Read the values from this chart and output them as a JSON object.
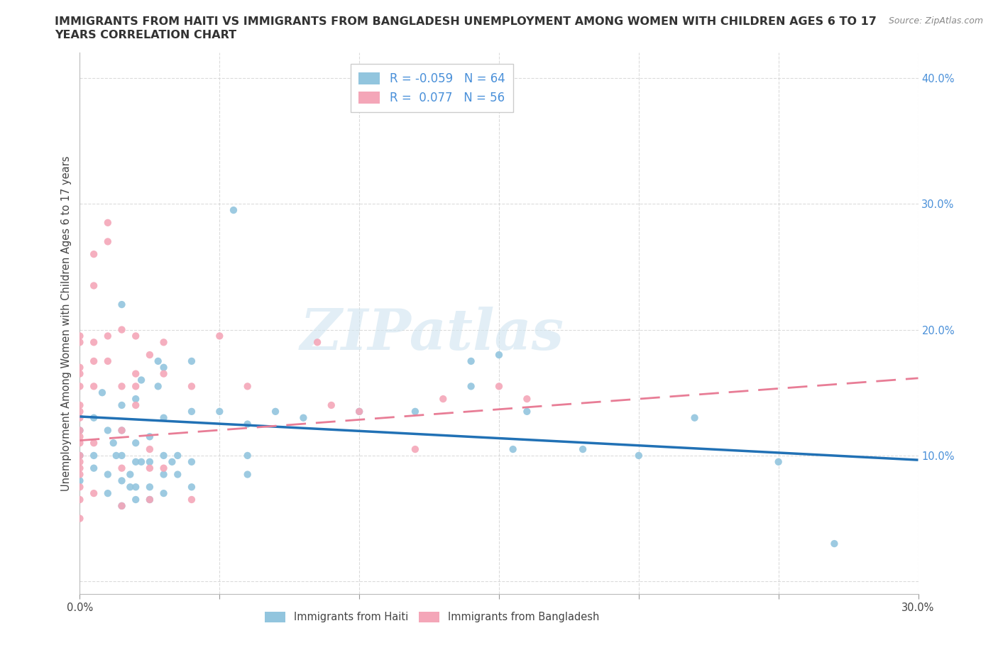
{
  "title_line1": "IMMIGRANTS FROM HAITI VS IMMIGRANTS FROM BANGLADESH UNEMPLOYMENT AMONG WOMEN WITH CHILDREN AGES 6 TO 17",
  "title_line2": "YEARS CORRELATION CHART",
  "source": "Source: ZipAtlas.com",
  "ylabel": "Unemployment Among Women with Children Ages 6 to 17 years",
  "xlim": [
    0.0,
    0.3
  ],
  "ylim": [
    -0.01,
    0.42
  ],
  "xticks": [
    0.0,
    0.05,
    0.1,
    0.15,
    0.2,
    0.25,
    0.3
  ],
  "yticks": [
    0.0,
    0.1,
    0.2,
    0.3,
    0.4
  ],
  "haiti_color": "#92c5de",
  "bangladesh_color": "#f4a6b8",
  "haiti_line_color": "#2171b5",
  "bangladesh_line_color": "#e87d96",
  "R_haiti": -0.059,
  "N_haiti": 64,
  "R_bangladesh": 0.077,
  "N_bangladesh": 56,
  "haiti_intercept": 0.131,
  "haiti_slope": -0.115,
  "bangladesh_intercept": 0.112,
  "bangladesh_slope": 0.165,
  "haiti_scatter": [
    [
      0.0,
      0.12
    ],
    [
      0.0,
      0.1
    ],
    [
      0.0,
      0.08
    ],
    [
      0.005,
      0.13
    ],
    [
      0.005,
      0.1
    ],
    [
      0.005,
      0.09
    ],
    [
      0.008,
      0.15
    ],
    [
      0.01,
      0.12
    ],
    [
      0.01,
      0.085
    ],
    [
      0.01,
      0.07
    ],
    [
      0.012,
      0.11
    ],
    [
      0.013,
      0.1
    ],
    [
      0.015,
      0.22
    ],
    [
      0.015,
      0.14
    ],
    [
      0.015,
      0.12
    ],
    [
      0.015,
      0.1
    ],
    [
      0.015,
      0.08
    ],
    [
      0.015,
      0.06
    ],
    [
      0.018,
      0.085
    ],
    [
      0.018,
      0.075
    ],
    [
      0.02,
      0.145
    ],
    [
      0.02,
      0.11
    ],
    [
      0.02,
      0.095
    ],
    [
      0.02,
      0.075
    ],
    [
      0.02,
      0.065
    ],
    [
      0.022,
      0.16
    ],
    [
      0.022,
      0.095
    ],
    [
      0.025,
      0.115
    ],
    [
      0.025,
      0.095
    ],
    [
      0.025,
      0.075
    ],
    [
      0.025,
      0.065
    ],
    [
      0.028,
      0.175
    ],
    [
      0.028,
      0.155
    ],
    [
      0.03,
      0.17
    ],
    [
      0.03,
      0.13
    ],
    [
      0.03,
      0.1
    ],
    [
      0.03,
      0.085
    ],
    [
      0.03,
      0.07
    ],
    [
      0.033,
      0.095
    ],
    [
      0.035,
      0.1
    ],
    [
      0.035,
      0.085
    ],
    [
      0.04,
      0.175
    ],
    [
      0.04,
      0.135
    ],
    [
      0.04,
      0.095
    ],
    [
      0.04,
      0.075
    ],
    [
      0.05,
      0.135
    ],
    [
      0.055,
      0.295
    ],
    [
      0.06,
      0.125
    ],
    [
      0.06,
      0.1
    ],
    [
      0.06,
      0.085
    ],
    [
      0.07,
      0.135
    ],
    [
      0.08,
      0.13
    ],
    [
      0.1,
      0.135
    ],
    [
      0.12,
      0.135
    ],
    [
      0.14,
      0.175
    ],
    [
      0.14,
      0.155
    ],
    [
      0.15,
      0.18
    ],
    [
      0.155,
      0.105
    ],
    [
      0.16,
      0.135
    ],
    [
      0.18,
      0.105
    ],
    [
      0.2,
      0.1
    ],
    [
      0.22,
      0.13
    ],
    [
      0.25,
      0.095
    ],
    [
      0.27,
      0.03
    ]
  ],
  "bangladesh_scatter": [
    [
      0.0,
      0.195
    ],
    [
      0.0,
      0.19
    ],
    [
      0.0,
      0.17
    ],
    [
      0.0,
      0.165
    ],
    [
      0.0,
      0.155
    ],
    [
      0.0,
      0.14
    ],
    [
      0.0,
      0.135
    ],
    [
      0.0,
      0.13
    ],
    [
      0.0,
      0.12
    ],
    [
      0.0,
      0.115
    ],
    [
      0.0,
      0.11
    ],
    [
      0.0,
      0.1
    ],
    [
      0.0,
      0.095
    ],
    [
      0.0,
      0.09
    ],
    [
      0.0,
      0.085
    ],
    [
      0.0,
      0.075
    ],
    [
      0.0,
      0.065
    ],
    [
      0.0,
      0.05
    ],
    [
      0.005,
      0.26
    ],
    [
      0.005,
      0.235
    ],
    [
      0.005,
      0.19
    ],
    [
      0.005,
      0.175
    ],
    [
      0.005,
      0.155
    ],
    [
      0.005,
      0.11
    ],
    [
      0.005,
      0.07
    ],
    [
      0.01,
      0.285
    ],
    [
      0.01,
      0.27
    ],
    [
      0.01,
      0.195
    ],
    [
      0.01,
      0.175
    ],
    [
      0.015,
      0.2
    ],
    [
      0.015,
      0.155
    ],
    [
      0.015,
      0.12
    ],
    [
      0.015,
      0.09
    ],
    [
      0.015,
      0.06
    ],
    [
      0.02,
      0.195
    ],
    [
      0.02,
      0.165
    ],
    [
      0.02,
      0.155
    ],
    [
      0.02,
      0.14
    ],
    [
      0.025,
      0.18
    ],
    [
      0.025,
      0.105
    ],
    [
      0.025,
      0.09
    ],
    [
      0.025,
      0.065
    ],
    [
      0.03,
      0.19
    ],
    [
      0.03,
      0.165
    ],
    [
      0.03,
      0.09
    ],
    [
      0.04,
      0.155
    ],
    [
      0.04,
      0.065
    ],
    [
      0.05,
      0.195
    ],
    [
      0.06,
      0.155
    ],
    [
      0.085,
      0.19
    ],
    [
      0.09,
      0.14
    ],
    [
      0.1,
      0.135
    ],
    [
      0.12,
      0.105
    ],
    [
      0.13,
      0.145
    ],
    [
      0.15,
      0.155
    ],
    [
      0.16,
      0.145
    ]
  ],
  "watermark": "ZIPatlas",
  "background_color": "#ffffff",
  "grid_color": "#cccccc",
  "tick_label_color": "#4a90d9",
  "title_fontsize": 11.5,
  "label_fontsize": 10.5,
  "legend_fontsize": 12
}
